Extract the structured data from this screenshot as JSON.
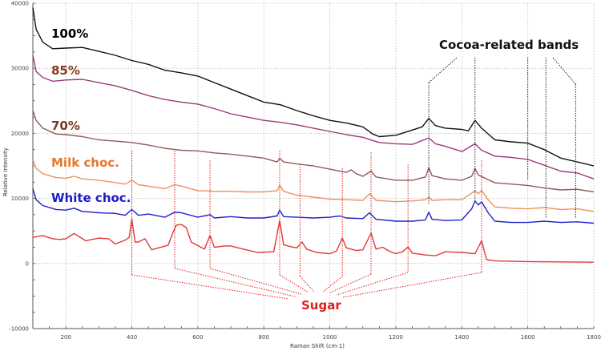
{
  "chart_data": {
    "type": "line",
    "xlabel": "Raman Shift (cm-1)",
    "ylabel": "Relative Intensity",
    "xlim": [
      100,
      1800
    ],
    "ylim": [
      -10000,
      40000
    ],
    "xticks": [
      200,
      400,
      600,
      800,
      1000,
      1200,
      1400,
      1600,
      1800
    ],
    "yticks": [
      -10000,
      0,
      10000,
      20000,
      30000,
      40000
    ],
    "grid": true,
    "series": [
      {
        "name": "100%",
        "color": "#111111",
        "label_color": "#000000",
        "x": [
          100,
          110,
          130,
          160,
          200,
          250,
          300,
          350,
          400,
          450,
          500,
          550,
          600,
          650,
          700,
          750,
          800,
          850,
          900,
          950,
          1000,
          1050,
          1100,
          1130,
          1150,
          1200,
          1250,
          1280,
          1300,
          1320,
          1350,
          1400,
          1420,
          1440,
          1460,
          1500,
          1550,
          1600,
          1650,
          1700,
          1750,
          1800
        ],
        "y": [
          39300,
          36000,
          34000,
          33000,
          33100,
          33200,
          32600,
          32000,
          31200,
          30600,
          29700,
          29300,
          28800,
          27800,
          26800,
          25800,
          24800,
          24400,
          23500,
          22700,
          22000,
          21600,
          21000,
          19900,
          19500,
          19700,
          20500,
          21000,
          22300,
          21200,
          20800,
          20600,
          20400,
          22000,
          20800,
          19000,
          18700,
          18500,
          17500,
          16200,
          15600,
          15000
        ]
      },
      {
        "name": "85%",
        "color": "#9B3A78",
        "label_color": "#8B3A1A",
        "x": [
          100,
          110,
          130,
          160,
          200,
          250,
          300,
          350,
          400,
          450,
          500,
          550,
          600,
          650,
          700,
          750,
          800,
          850,
          900,
          950,
          1000,
          1050,
          1100,
          1130,
          1150,
          1200,
          1250,
          1300,
          1320,
          1350,
          1400,
          1440,
          1460,
          1500,
          1550,
          1600,
          1650,
          1700,
          1750,
          1800
        ],
        "y": [
          32000,
          29500,
          28600,
          28000,
          28200,
          28300,
          27800,
          27300,
          26600,
          25800,
          25200,
          24800,
          24500,
          23800,
          23000,
          22500,
          22000,
          21700,
          21300,
          20800,
          20300,
          19800,
          19400,
          18900,
          18600,
          18400,
          18300,
          19300,
          18400,
          18000,
          17200,
          18400,
          17400,
          16500,
          16300,
          16000,
          15100,
          14200,
          13900,
          13000
        ]
      },
      {
        "name": "70%",
        "color": "#8E5A5E",
        "label_color": "#7A3A22",
        "x": [
          100,
          110,
          130,
          170,
          200,
          250,
          300,
          350,
          400,
          450,
          500,
          550,
          600,
          650,
          700,
          750,
          800,
          840,
          848,
          860,
          900,
          950,
          1000,
          1050,
          1065,
          1080,
          1100,
          1125,
          1140,
          1200,
          1250,
          1290,
          1300,
          1310,
          1350,
          1400,
          1430,
          1440,
          1450,
          1500,
          1550,
          1600,
          1650,
          1700,
          1750,
          1800
        ],
        "y": [
          23500,
          22000,
          20800,
          19900,
          19800,
          19500,
          19000,
          18800,
          18600,
          18200,
          17700,
          17400,
          17300,
          17000,
          16800,
          16500,
          16200,
          15600,
          16200,
          15600,
          15300,
          15000,
          14500,
          14000,
          14400,
          13800,
          13400,
          14200,
          13300,
          12800,
          12800,
          13300,
          14700,
          13500,
          13000,
          12800,
          13400,
          14600,
          13600,
          12400,
          12200,
          12000,
          11600,
          11300,
          11400,
          11000
        ]
      },
      {
        "name": "Milk choc.",
        "color": "#F0915A",
        "label_color": "#E8782A",
        "x": [
          100,
          110,
          130,
          170,
          200,
          225,
          250,
          300,
          380,
          400,
          420,
          500,
          530,
          550,
          600,
          650,
          700,
          750,
          800,
          840,
          848,
          860,
          900,
          950,
          1000,
          1050,
          1100,
          1120,
          1140,
          1200,
          1250,
          1290,
          1300,
          1310,
          1350,
          1400,
          1430,
          1440,
          1450,
          1460,
          1480,
          1500,
          1550,
          1600,
          1650,
          1700,
          1750,
          1800
        ],
        "y": [
          16000,
          14600,
          13800,
          13200,
          13100,
          13400,
          13000,
          12800,
          12200,
          12800,
          12100,
          11500,
          12100,
          11900,
          11200,
          11100,
          11100,
          11000,
          11000,
          11200,
          12000,
          11100,
          10500,
          10200,
          9900,
          9800,
          9700,
          10700,
          9700,
          9500,
          9600,
          9800,
          10200,
          9700,
          9800,
          9800,
          10800,
          11200,
          10700,
          11200,
          9800,
          8700,
          8500,
          8400,
          8600,
          8300,
          8400,
          8000
        ]
      },
      {
        "name": "White choc.",
        "color": "#2020CC",
        "label_color": "#1A1ACC",
        "x": [
          100,
          110,
          130,
          170,
          200,
          225,
          250,
          300,
          350,
          380,
          400,
          420,
          450,
          500,
          530,
          550,
          600,
          637,
          650,
          700,
          750,
          800,
          840,
          848,
          860,
          900,
          950,
          1000,
          1030,
          1050,
          1100,
          1120,
          1140,
          1200,
          1250,
          1290,
          1300,
          1310,
          1350,
          1400,
          1430,
          1440,
          1450,
          1460,
          1480,
          1500,
          1550,
          1600,
          1650,
          1700,
          1750,
          1800
        ],
        "y": [
          11500,
          9800,
          8900,
          8300,
          8200,
          8500,
          8000,
          7800,
          7700,
          7400,
          8300,
          7400,
          7600,
          7100,
          7900,
          7800,
          7100,
          7500,
          7000,
          7200,
          7000,
          7000,
          7300,
          8200,
          7200,
          7100,
          7000,
          7100,
          7300,
          7000,
          6900,
          7800,
          6800,
          6500,
          6500,
          6700,
          7900,
          6800,
          6600,
          6700,
          8400,
          9600,
          9000,
          9500,
          7800,
          6500,
          6300,
          6300,
          6500,
          6300,
          6400,
          6200
        ]
      },
      {
        "name": "Sugar",
        "color": "#E03A3A",
        "label_color": "#E02020",
        "x": [
          100,
          130,
          160,
          180,
          200,
          225,
          260,
          300,
          330,
          350,
          380,
          392,
          400,
          410,
          420,
          440,
          460,
          510,
          525,
          535,
          550,
          565,
          580,
          620,
          637,
          650,
          680,
          700,
          730,
          780,
          830,
          848,
          860,
          880,
          900,
          916,
          930,
          960,
          1000,
          1020,
          1038,
          1050,
          1080,
          1100,
          1125,
          1140,
          1160,
          1180,
          1200,
          1220,
          1237,
          1250,
          1290,
          1320,
          1350,
          1400,
          1440,
          1460,
          1475,
          1500,
          1600,
          1700,
          1800
        ],
        "y": [
          4000,
          4300,
          3800,
          3700,
          3800,
          4600,
          3500,
          3900,
          3800,
          3000,
          3600,
          4000,
          6800,
          3300,
          3300,
          3800,
          2100,
          2800,
          4800,
          5900,
          6000,
          5500,
          3300,
          2200,
          4300,
          2500,
          2700,
          2700,
          2300,
          1700,
          1800,
          6600,
          2900,
          2600,
          2400,
          3300,
          2200,
          1700,
          1500,
          1900,
          3900,
          2400,
          2000,
          2100,
          4650,
          2200,
          2500,
          1900,
          1500,
          1800,
          2550,
          1600,
          1300,
          1200,
          1800,
          1700,
          1500,
          3500,
          600,
          400,
          300,
          250,
          200
        ]
      }
    ],
    "annotations": {
      "cocoa_label": "Cocoa-related bands",
      "cocoa_bands": [
        1300,
        1440,
        1600,
        1655,
        1745
      ],
      "sugar_label": "Sugar",
      "sugar_bands": [
        400,
        530,
        637,
        848,
        910,
        1038,
        1125,
        1237,
        1460
      ]
    }
  }
}
